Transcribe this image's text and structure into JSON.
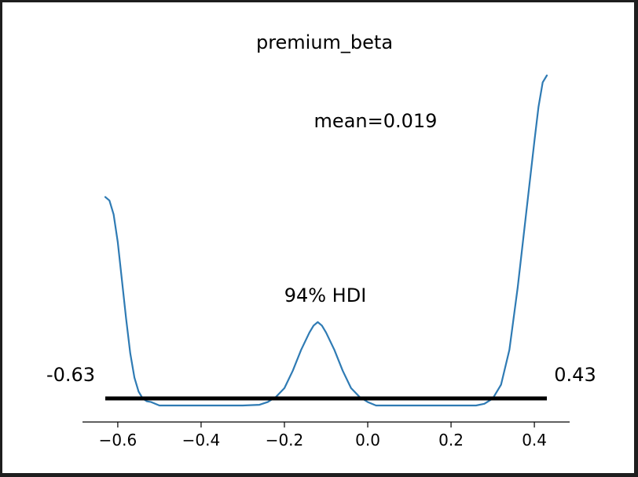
{
  "chart_data": {
    "type": "line",
    "title": "premium_beta",
    "xlabel": "",
    "ylabel": "",
    "xlim": [
      -0.67,
      0.47
    ],
    "ylim": [
      -0.01,
      0.97
    ],
    "x_ticks": [
      -0.6,
      -0.4,
      -0.2,
      0.0,
      0.2,
      0.4
    ],
    "x_tick_labels": [
      "−0.6",
      "−0.4",
      "−0.2",
      "0.0",
      "0.2",
      "0.4"
    ],
    "grid": false,
    "series": [
      {
        "color": "#2f7bb4",
        "x": [
          -0.63,
          -0.62,
          -0.61,
          -0.6,
          -0.59,
          -0.58,
          -0.57,
          -0.56,
          -0.55,
          -0.54,
          -0.53,
          -0.52,
          -0.5,
          -0.48,
          -0.4,
          -0.3,
          -0.26,
          -0.24,
          -0.22,
          -0.2,
          -0.18,
          -0.16,
          -0.14,
          -0.13,
          -0.12,
          -0.11,
          -0.1,
          -0.08,
          -0.06,
          -0.04,
          -0.02,
          0.0,
          0.02,
          0.1,
          0.2,
          0.26,
          0.28,
          0.3,
          0.32,
          0.34,
          0.36,
          0.38,
          0.4,
          0.41,
          0.42,
          0.43
        ],
        "y": [
          0.6,
          0.59,
          0.55,
          0.47,
          0.36,
          0.25,
          0.15,
          0.08,
          0.04,
          0.02,
          0.012,
          0.01,
          0.0,
          0.0,
          0.0,
          0.0,
          0.002,
          0.01,
          0.025,
          0.05,
          0.1,
          0.16,
          0.21,
          0.23,
          0.24,
          0.23,
          0.21,
          0.16,
          0.1,
          0.05,
          0.025,
          0.01,
          0.0,
          0.0,
          0.0,
          0.0,
          0.005,
          0.02,
          0.06,
          0.16,
          0.34,
          0.55,
          0.76,
          0.86,
          0.93,
          0.95
        ]
      }
    ],
    "hdi": {
      "label": "94% HDI",
      "lower": -0.63,
      "upper": 0.43,
      "lower_label": "-0.63",
      "upper_label": "0.43",
      "color": "#000000"
    },
    "point_estimate": {
      "label": "mean=0.019",
      "value": 0.019
    }
  }
}
